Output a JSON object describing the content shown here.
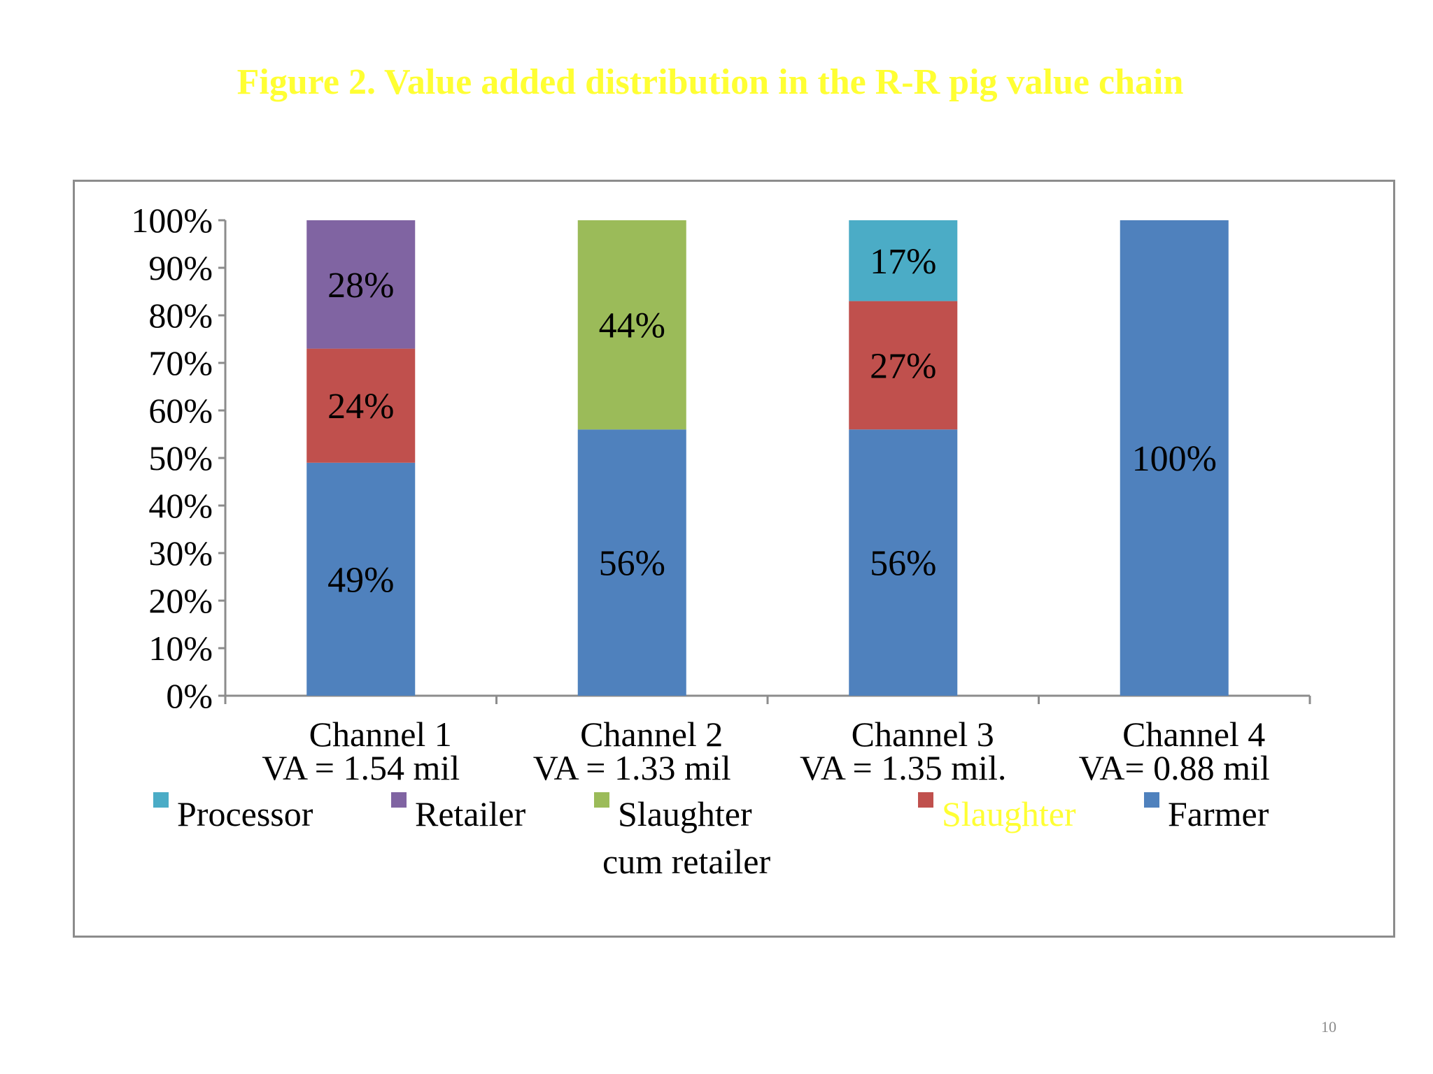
{
  "title": "Figure 2. Value added distribution in the R-R pig value chain",
  "page_number": "10",
  "colors": {
    "title": "#ffff33",
    "Processor": "#4bacc6",
    "Retailer": "#8064a2",
    "Slaughter cum retailer": "#9bbb59",
    "Slaughter": "#c0504d",
    "Farmer": "#4f81bd"
  },
  "chart_data": {
    "type": "bar",
    "stacked": true,
    "categories": [
      "Channel 1",
      "Channel 2",
      "Channel 3",
      "Channel 4"
    ],
    "category_sublabels": [
      "VA = 1.54 mil",
      "VA = 1.33 mil",
      "VA = 1.35 mil.",
      "VA= 0.88 mil"
    ],
    "ylim": [
      0,
      100
    ],
    "yticks": [
      "0%",
      "10%",
      "20%",
      "30%",
      "40%",
      "50%",
      "60%",
      "70%",
      "80%",
      "90%",
      "100%"
    ],
    "grid": false,
    "legend_position": "bottom",
    "series": [
      {
        "name": "Farmer",
        "values": [
          49,
          56,
          56,
          100
        ],
        "labels": [
          "49%",
          "56%",
          "56%",
          "100%"
        ]
      },
      {
        "name": "Slaughter",
        "values": [
          24,
          0,
          27,
          0
        ],
        "labels": [
          "24%",
          "",
          "27%",
          ""
        ]
      },
      {
        "name": "Slaughter cum retailer",
        "values": [
          0,
          44,
          0,
          0
        ],
        "labels": [
          "",
          "44%",
          "",
          ""
        ]
      },
      {
        "name": "Retailer",
        "values": [
          28,
          0,
          0,
          0
        ],
        "labels": [
          "28%",
          "",
          "",
          ""
        ]
      },
      {
        "name": "Processor",
        "values": [
          0,
          0,
          17,
          0
        ],
        "labels": [
          "",
          "",
          "17%",
          ""
        ]
      }
    ],
    "legend": [
      {
        "series": "Processor",
        "lines": [
          "Processor"
        ],
        "text_color": "#000000"
      },
      {
        "series": "Retailer",
        "lines": [
          "Retailer"
        ],
        "text_color": "#000000"
      },
      {
        "series": "Slaughter cum retailer",
        "lines": [
          "Slaughter",
          "cum retailer"
        ],
        "text_color": "#000000"
      },
      {
        "series": "Slaughter",
        "lines": [
          "Slaughter"
        ],
        "text_color": "#ffff33"
      },
      {
        "series": "Farmer",
        "lines": [
          "Farmer"
        ],
        "text_color": "#000000"
      }
    ]
  }
}
